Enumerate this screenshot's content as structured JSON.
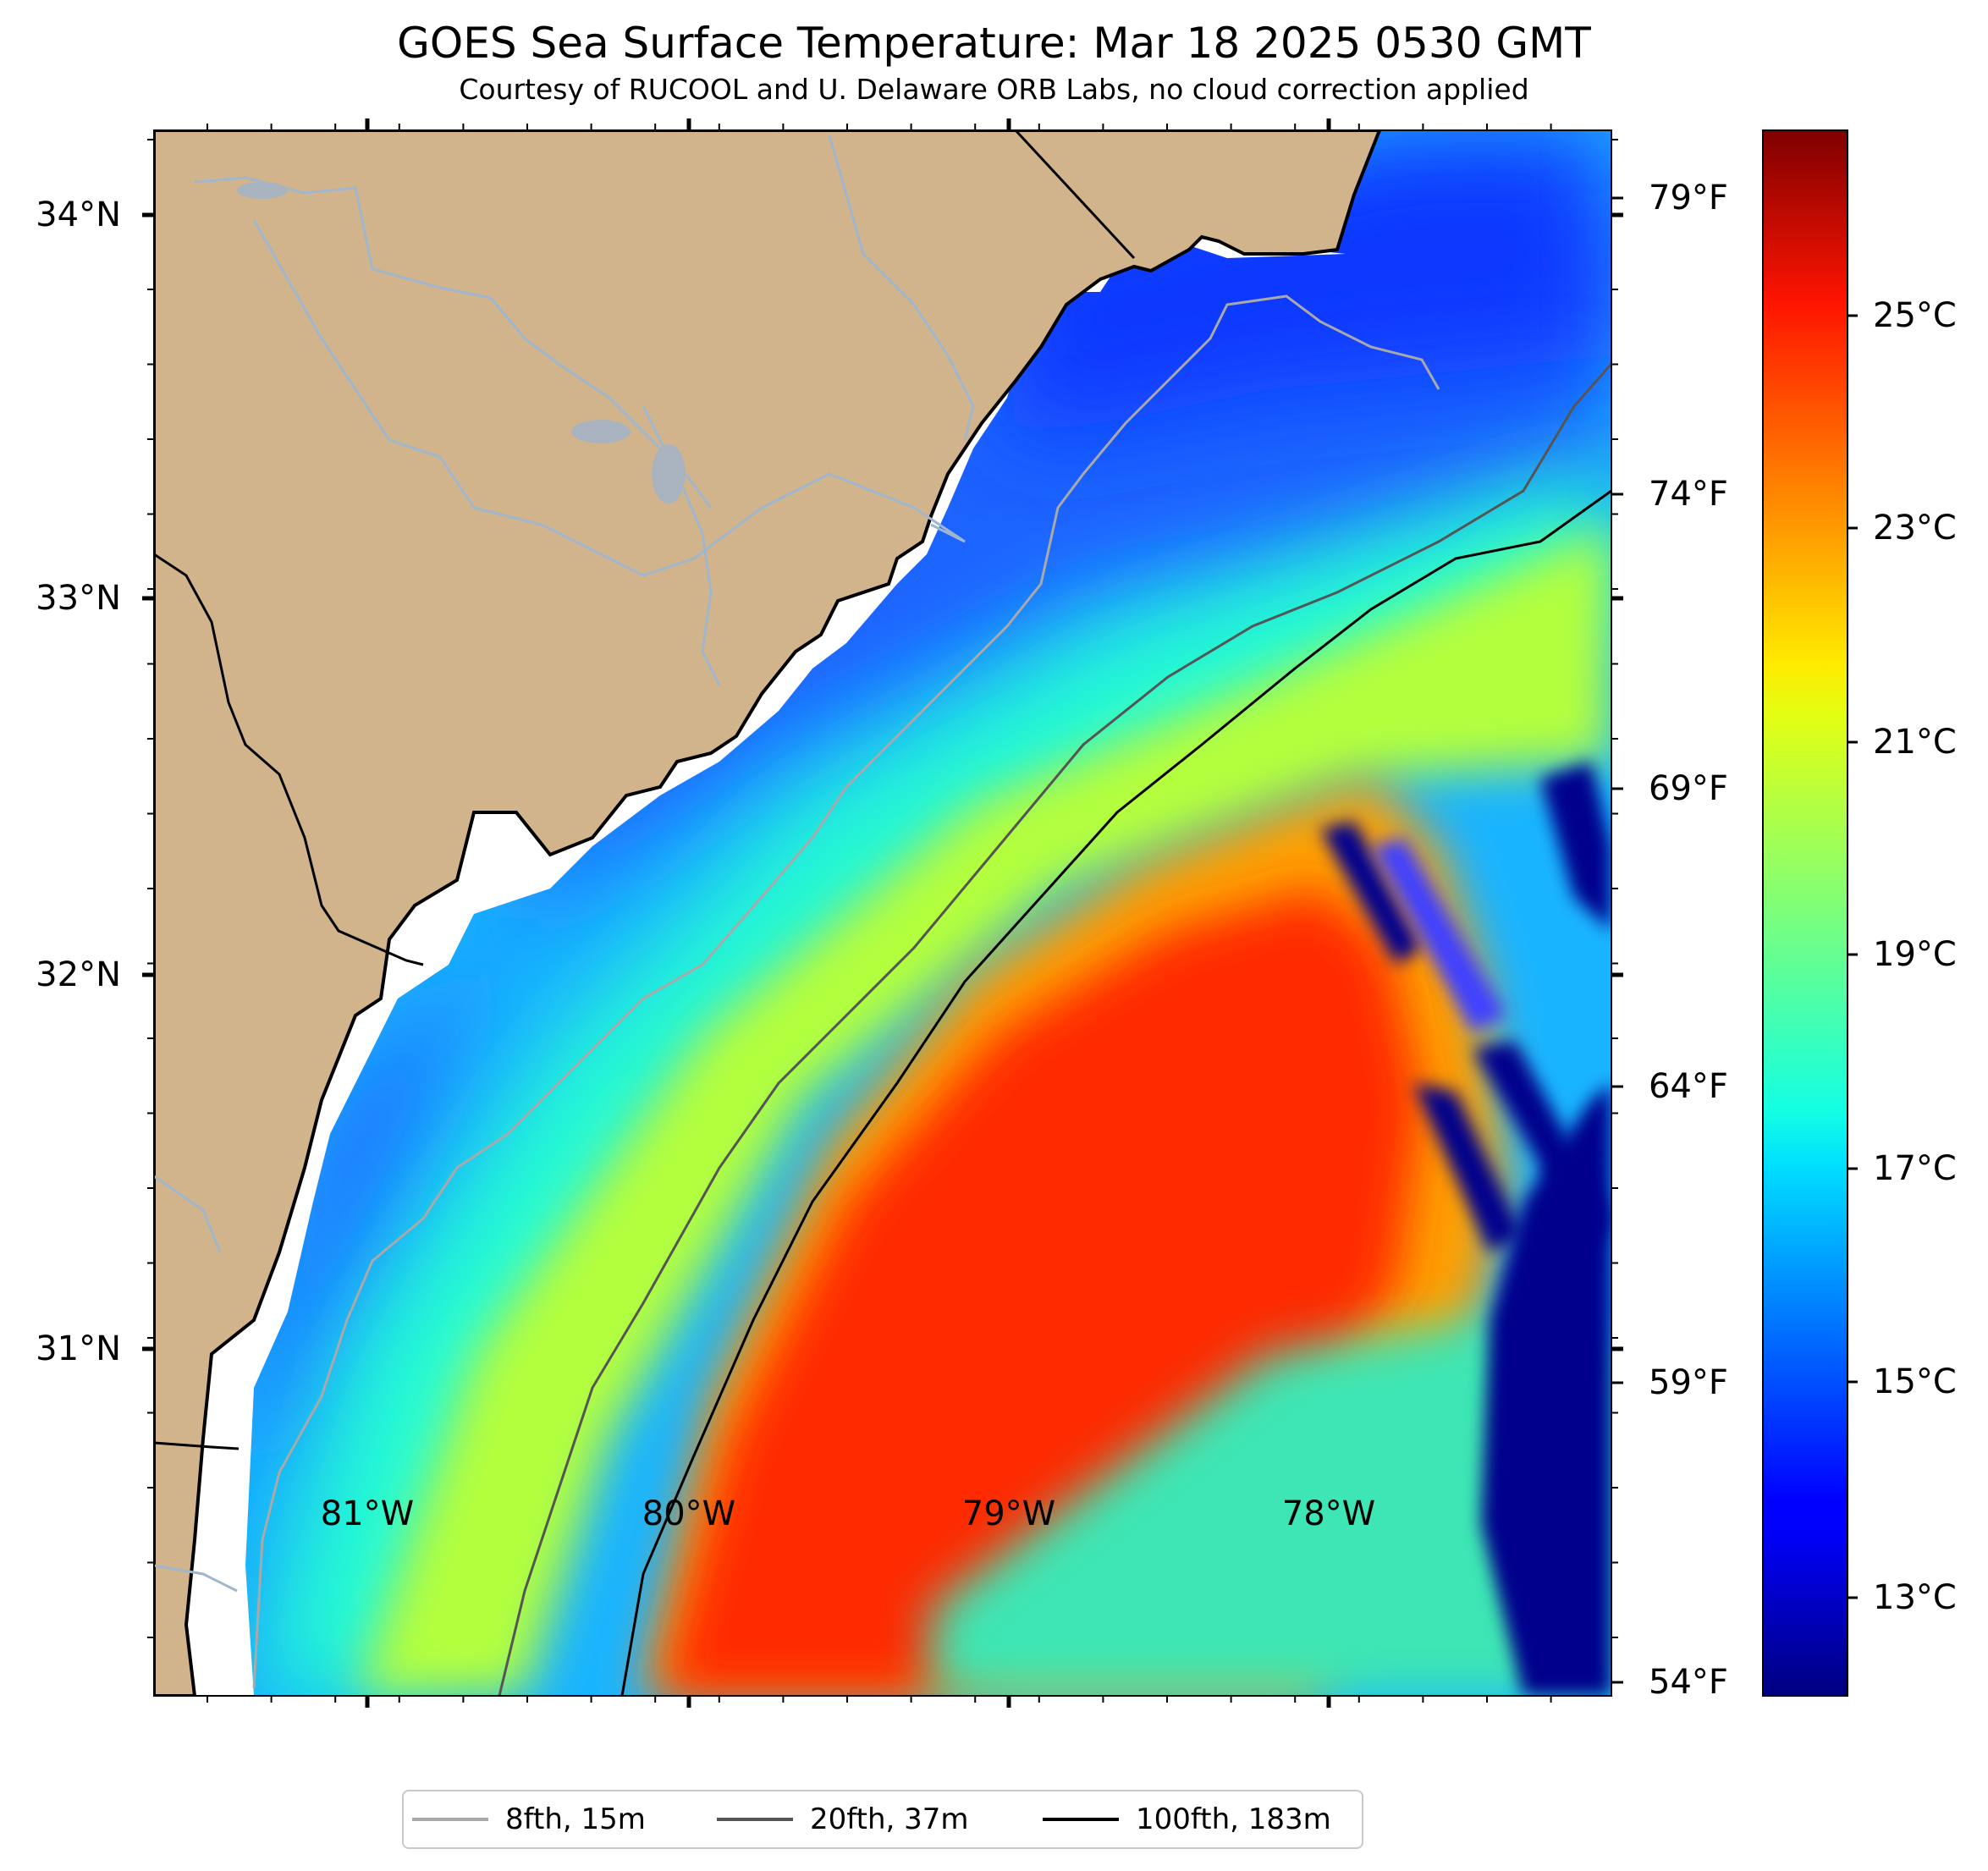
{
  "title": "GOES Sea Surface Temperature: Mar 18 2025 0530 GMT",
  "subtitle": "Courtesy of RUCOOL and U. Delaware ORB Labs, no cloud correction applied",
  "map": {
    "land_color": "#D2B48C",
    "coastline_color": "#000000",
    "no_data_color": "#ffffff",
    "lon_labels": [
      "81°W",
      "80°W",
      "79°W",
      "78°W"
    ],
    "lat_labels": [
      "34°N",
      "33°N",
      "32°N",
      "31°N"
    ],
    "extent": {
      "lon_min": -81.67,
      "lon_max": -77.1,
      "lat_min": 30.22,
      "lat_max": 34.22
    }
  },
  "fahrenheit_axis": {
    "labels": [
      "79°F",
      "74°F",
      "69°F",
      "64°F",
      "59°F",
      "54°F"
    ],
    "values": [
      79,
      74,
      69,
      64,
      59,
      54
    ]
  },
  "colorbar": {
    "colormap": "jet",
    "range_c": [
      12,
      27
    ],
    "labels": [
      "25°C",
      "23°C",
      "21°C",
      "19°C",
      "17°C",
      "15°C",
      "13°C"
    ],
    "values": [
      25,
      23,
      21,
      19,
      17,
      15,
      13
    ]
  },
  "legend": {
    "items": [
      {
        "label": "8fth, 15m",
        "color": "#a9a9a9"
      },
      {
        "label": "20fth, 37m",
        "color": "#555555"
      },
      {
        "label": "100fth, 183m",
        "color": "#000000"
      }
    ]
  }
}
